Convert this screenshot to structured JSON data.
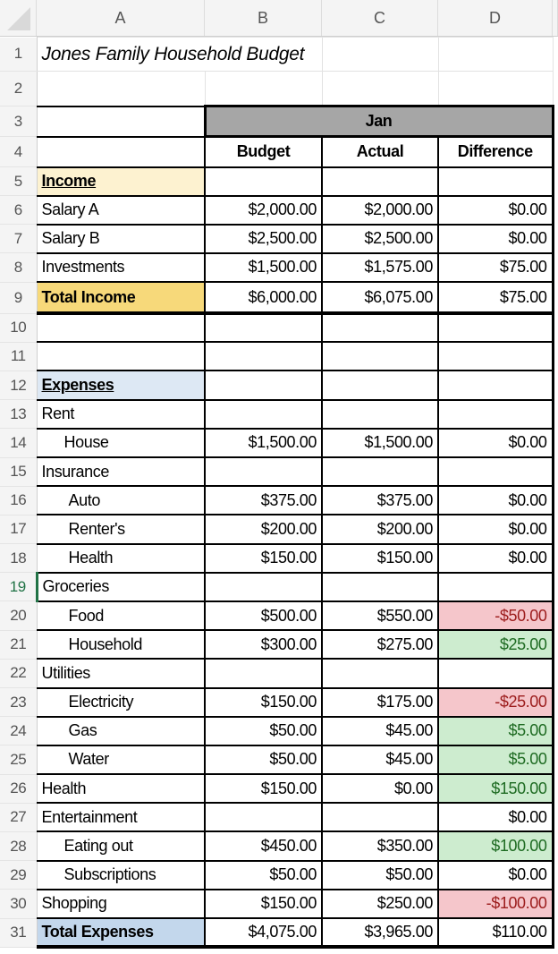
{
  "columns": [
    "A",
    "B",
    "C",
    "D"
  ],
  "title": "Jones Family Household Budget",
  "month": "Jan",
  "headers": [
    "Budget",
    "Actual",
    "Difference"
  ],
  "selected_row": 19,
  "rows": [
    {
      "n": 1,
      "label": "Jones Family Household Budget",
      "kind": "title"
    },
    {
      "n": 2,
      "kind": "blank"
    },
    {
      "n": 3,
      "kind": "month"
    },
    {
      "n": 4,
      "kind": "headers"
    },
    {
      "n": 5,
      "label": "Income",
      "kind": "section-income"
    },
    {
      "n": 6,
      "label": "Salary A",
      "b": "$2,000.00",
      "c": "$2,000.00",
      "d": "$0.00"
    },
    {
      "n": 7,
      "label": "Salary B",
      "b": "$2,500.00",
      "c": "$2,500.00",
      "d": "$0.00"
    },
    {
      "n": 8,
      "label": "Investments",
      "b": "$1,500.00",
      "c": "$1,575.00",
      "d": "$75.00"
    },
    {
      "n": 9,
      "label": "Total Income",
      "b": "$6,000.00",
      "c": "$6,075.00",
      "d": "$75.00",
      "kind": "total-income"
    },
    {
      "n": 10
    },
    {
      "n": 11
    },
    {
      "n": 12,
      "label": "Expenses",
      "kind": "section-expenses"
    },
    {
      "n": 13,
      "label": "Rent"
    },
    {
      "n": 14,
      "label": "House",
      "indent": 1,
      "b": "$1,500.00",
      "c": "$1,500.00",
      "d": "$0.00"
    },
    {
      "n": 15,
      "label": "Insurance"
    },
    {
      "n": 16,
      "label": "Auto",
      "indent": 2,
      "b": "$375.00",
      "c": "$375.00",
      "d": "$0.00"
    },
    {
      "n": 17,
      "label": "Renter's",
      "indent": 2,
      "b": "$200.00",
      "c": "$200.00",
      "d": "$0.00"
    },
    {
      "n": 18,
      "label": "Health",
      "indent": 2,
      "b": "$150.00",
      "c": "$150.00",
      "d": "$0.00"
    },
    {
      "n": 19,
      "label": "Groceries"
    },
    {
      "n": 20,
      "label": "Food",
      "indent": 2,
      "b": "$500.00",
      "c": "$550.00",
      "d": "-$50.00",
      "status": "neg"
    },
    {
      "n": 21,
      "label": "Household",
      "indent": 2,
      "b": "$300.00",
      "c": "$275.00",
      "d": "$25.00",
      "status": "pos"
    },
    {
      "n": 22,
      "label": "Utilities"
    },
    {
      "n": 23,
      "label": "Electricity",
      "indent": 2,
      "b": "$150.00",
      "c": "$175.00",
      "d": "-$25.00",
      "status": "neg"
    },
    {
      "n": 24,
      "label": "Gas",
      "indent": 2,
      "b": "$50.00",
      "c": "$45.00",
      "d": "$5.00",
      "status": "pos"
    },
    {
      "n": 25,
      "label": "Water",
      "indent": 2,
      "b": "$50.00",
      "c": "$45.00",
      "d": "$5.00",
      "status": "pos"
    },
    {
      "n": 26,
      "label": "Health",
      "b": "$150.00",
      "c": "$0.00",
      "d": "$150.00",
      "status": "pos"
    },
    {
      "n": 27,
      "label": "Entertainment",
      "d": "$0.00"
    },
    {
      "n": 28,
      "label": "Eating out",
      "indent": 1,
      "b": "$450.00",
      "c": "$350.00",
      "d": "$100.00",
      "status": "pos"
    },
    {
      "n": 29,
      "label": "Subscriptions",
      "indent": 1,
      "b": "$50.00",
      "c": "$50.00",
      "d": "$0.00"
    },
    {
      "n": 30,
      "label": "Shopping",
      "b": "$150.00",
      "c": "$250.00",
      "d": "-$100.00",
      "status": "neg"
    },
    {
      "n": 31,
      "label": "Total Expenses",
      "b": "$4,075.00",
      "c": "$3,965.00",
      "d": "$110.00",
      "kind": "total-expenses"
    }
  ]
}
